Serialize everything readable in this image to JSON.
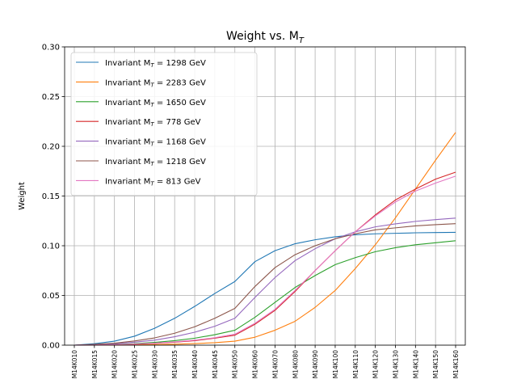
{
  "chart_data": {
    "type": "line",
    "title": "Weight vs. M",
    "title_sub": "T",
    "xlabel": "",
    "ylabel": "Weight",
    "ylim": [
      0,
      0.3
    ],
    "yticks": [
      "0.00",
      "0.05",
      "0.10",
      "0.15",
      "0.20",
      "0.25",
      "0.30"
    ],
    "grid": true,
    "legend_position": "upper-left",
    "categories": [
      "M14K010",
      "M14K015",
      "M14K020",
      "M14K025",
      "M14K030",
      "M14K035",
      "M14K040",
      "M14K045",
      "M14K050",
      "M14K060",
      "M14K070",
      "M14K080",
      "M14K090",
      "M14K100",
      "M14K110",
      "M14K120",
      "M14K130",
      "M14K140",
      "M14K150",
      "M14K160"
    ],
    "series": [
      {
        "name": "Invariant M",
        "sub": "T",
        "suffix": " = 1298 GeV",
        "color": "#1f77b4",
        "values": [
          0.0,
          0.0015,
          0.004,
          0.009,
          0.017,
          0.027,
          0.039,
          0.052,
          0.064,
          0.084,
          0.095,
          0.102,
          0.106,
          0.109,
          0.111,
          0.112,
          0.1125,
          0.113,
          0.1133,
          0.1135
        ]
      },
      {
        "name": "Invariant M",
        "sub": "T",
        "suffix": " = 2283 GeV",
        "color": "#ff7f0e",
        "values": [
          0.0,
          0.0,
          0.0,
          0.0003,
          0.0006,
          0.001,
          0.0016,
          0.0025,
          0.004,
          0.008,
          0.015,
          0.024,
          0.038,
          0.055,
          0.077,
          0.101,
          0.128,
          0.157,
          0.186,
          0.214
        ]
      },
      {
        "name": "Invariant M",
        "sub": "T",
        "suffix": " = 1650 GeV",
        "color": "#2ca02c",
        "values": [
          0.0,
          0.0002,
          0.0007,
          0.0015,
          0.0028,
          0.0045,
          0.007,
          0.0105,
          0.015,
          0.028,
          0.043,
          0.058,
          0.07,
          0.081,
          0.088,
          0.094,
          0.098,
          0.101,
          0.103,
          0.105
        ]
      },
      {
        "name": "Invariant M",
        "sub": "T",
        "suffix": " = 778 GeV",
        "color": "#d62728",
        "values": [
          0.0,
          0.0002,
          0.0005,
          0.001,
          0.0018,
          0.003,
          0.0045,
          0.007,
          0.01,
          0.021,
          0.035,
          0.054,
          0.075,
          0.095,
          0.114,
          0.131,
          0.146,
          0.157,
          0.167,
          0.174
        ]
      },
      {
        "name": "Invariant M",
        "sub": "T",
        "suffix": " = 1168 GeV",
        "color": "#9467bd",
        "values": [
          0.0,
          0.0005,
          0.0015,
          0.003,
          0.005,
          0.0085,
          0.013,
          0.019,
          0.027,
          0.048,
          0.068,
          0.085,
          0.097,
          0.107,
          0.114,
          0.119,
          0.122,
          0.1245,
          0.1263,
          0.1278
        ]
      },
      {
        "name": "Invariant M",
        "sub": "T",
        "suffix": " = 1218 GeV",
        "color": "#8c564b",
        "values": [
          0.0,
          0.0008,
          0.002,
          0.0042,
          0.0073,
          0.012,
          0.0185,
          0.027,
          0.037,
          0.059,
          0.078,
          0.091,
          0.1,
          0.107,
          0.112,
          0.116,
          0.118,
          0.12,
          0.1212,
          0.1222
        ]
      },
      {
        "name": "Invariant M",
        "sub": "T",
        "suffix": " = 813 GeV",
        "color": "#e377c2",
        "values": [
          0.0,
          0.0002,
          0.0005,
          0.0011,
          0.002,
          0.0033,
          0.005,
          0.0075,
          0.011,
          0.022,
          0.036,
          0.055,
          0.075,
          0.095,
          0.114,
          0.13,
          0.144,
          0.155,
          0.163,
          0.17
        ]
      }
    ]
  }
}
